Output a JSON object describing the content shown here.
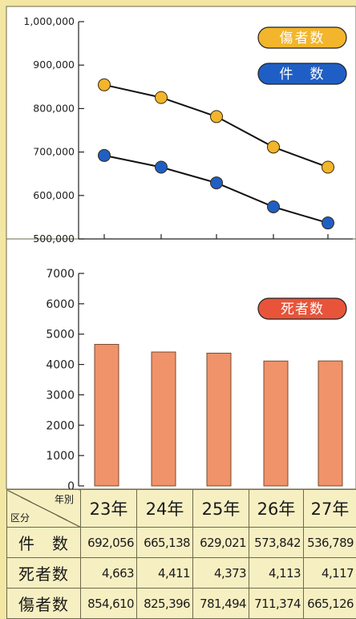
{
  "chart_data": [
    {
      "type": "line",
      "categories": [
        "23年",
        "24年",
        "25年",
        "26年",
        "27年"
      ],
      "series": [
        {
          "name": "傷者数",
          "values": [
            854610,
            825396,
            781494,
            711374,
            665126
          ],
          "color": "#f2b52b"
        },
        {
          "name": "件　数",
          "values": [
            692056,
            665138,
            629021,
            573842,
            536789
          ],
          "color": "#1f5fc5"
        }
      ],
      "ylim": [
        500000,
        1000000
      ],
      "yticks": [
        "500,000",
        "600,000",
        "700,000",
        "800,000",
        "900,000",
        "1,000,000"
      ],
      "legend_position": "top-right",
      "grid": false
    },
    {
      "type": "bar",
      "categories": [
        "23年",
        "24年",
        "25年",
        "26年",
        "27年"
      ],
      "series": [
        {
          "name": "死者数",
          "values": [
            4663,
            4411,
            4373,
            4113,
            4117
          ],
          "color": "#f0926a"
        }
      ],
      "ylim": [
        0,
        7000
      ],
      "yticks": [
        "0",
        "1000",
        "2000",
        "3000",
        "4000",
        "5000",
        "6000",
        "7000"
      ],
      "legend_position": "top-right",
      "grid": false
    }
  ],
  "table": {
    "corner_top": "年別",
    "corner_bottom": "区分",
    "years": [
      "23年",
      "24年",
      "25年",
      "26年",
      "27年"
    ],
    "rows": [
      {
        "label": "件　数",
        "values": [
          "692,056",
          "665,138",
          "629,021",
          "573,842",
          "536,789"
        ]
      },
      {
        "label": "死者数",
        "values": [
          "4,663",
          "4,411",
          "4,373",
          "4,113",
          "4,117"
        ]
      },
      {
        "label": "傷者数",
        "values": [
          "854,610",
          "825,396",
          "781,494",
          "711,374",
          "665,126"
        ]
      }
    ]
  }
}
